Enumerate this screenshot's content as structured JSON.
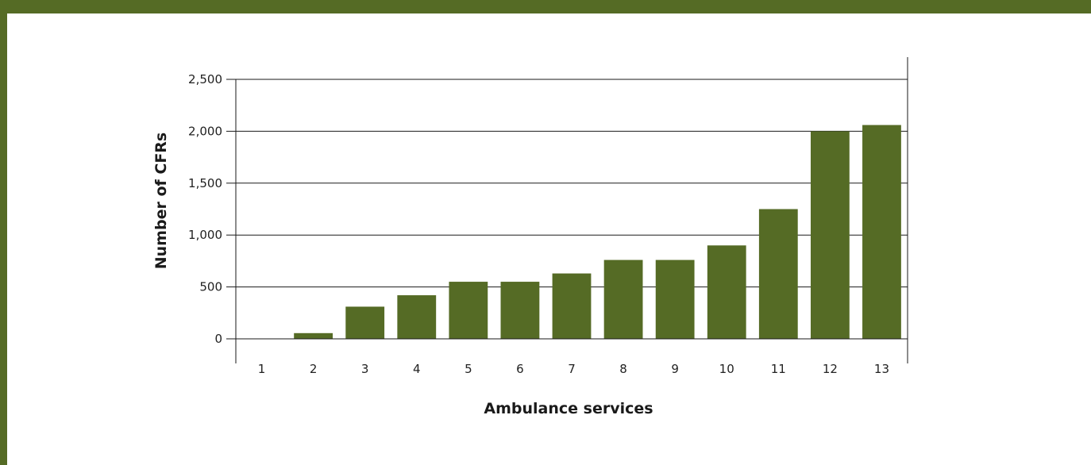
{
  "chart_data": {
    "type": "bar",
    "title": "",
    "xlabel": "Ambulance services",
    "ylabel": "Number of CFRs",
    "categories": [
      "1",
      "2",
      "3",
      "4",
      "5",
      "6",
      "7",
      "8",
      "9",
      "10",
      "11",
      "12",
      "13"
    ],
    "values": [
      0,
      55,
      310,
      420,
      550,
      550,
      630,
      760,
      760,
      900,
      1250,
      2000,
      2060
    ],
    "ylim": [
      0,
      2500
    ],
    "yticks": [
      0,
      500,
      1000,
      1500,
      2000,
      2500
    ],
    "ytick_labels": [
      "0",
      "500",
      "1,000",
      "1,500",
      "2,000",
      "2,500"
    ],
    "grid": true,
    "bar_color": "#556b25",
    "frame_color": "#556b25"
  }
}
